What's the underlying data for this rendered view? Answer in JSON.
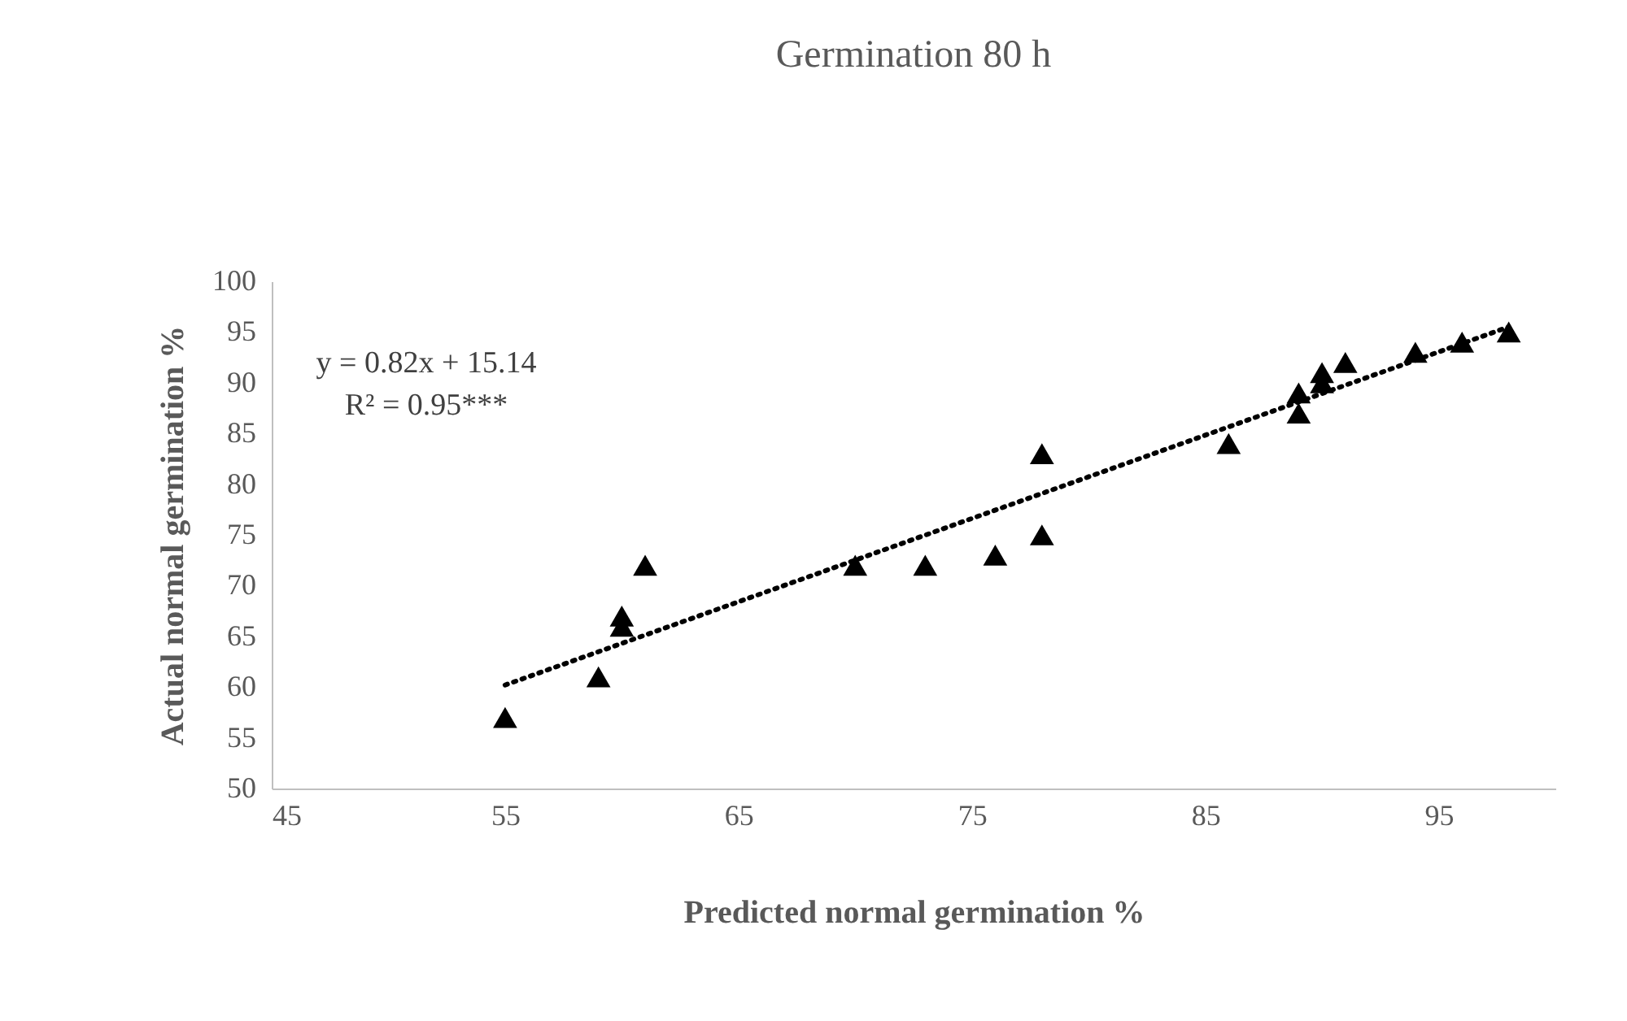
{
  "chart_data": {
    "type": "scatter",
    "title": "Germination 80 h",
    "xlabel": "Predicted normal germination %",
    "ylabel": "Actual normal germination %",
    "xlim": [
      45,
      100
    ],
    "xticks": [
      45,
      55,
      65,
      75,
      85,
      95
    ],
    "ylim": [
      50,
      100
    ],
    "yticks": [
      50,
      55,
      60,
      65,
      70,
      75,
      80,
      85,
      90,
      95,
      100
    ],
    "grid": false,
    "marker": "triangle",
    "annotations": [
      "y = 0.82x + 15.14",
      "R² = 0.95***"
    ],
    "series": [
      {
        "color": "#000000",
        "x": [
          55,
          59,
          60,
          60,
          61,
          70,
          73,
          76,
          78,
          78,
          86,
          89,
          89,
          90,
          90,
          91,
          94,
          96,
          98
        ],
        "values": [
          57,
          61,
          67,
          66,
          72,
          72,
          72,
          73,
          75,
          83,
          84,
          89,
          87,
          91,
          90,
          92,
          93,
          94,
          95
        ]
      },
      {
        "type": "line",
        "color": "#000000",
        "line_style": "dotted",
        "marker": "none",
        "x": [
          55,
          98
        ],
        "values": [
          60.2,
          95.5
        ]
      }
    ]
  }
}
